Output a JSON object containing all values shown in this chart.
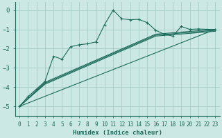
{
  "xlabel": "Humidex (Indice chaleur)",
  "bg_color": "#cce8e4",
  "grid_color": "#aacfca",
  "line_color": "#1a6b5a",
  "xlim": [
    -0.5,
    23.5
  ],
  "ylim": [
    -5.5,
    0.4
  ],
  "xticks": [
    0,
    1,
    2,
    3,
    4,
    5,
    6,
    7,
    8,
    9,
    10,
    11,
    12,
    13,
    14,
    15,
    16,
    17,
    18,
    19,
    20,
    21,
    22,
    23
  ],
  "yticks": [
    0,
    -1,
    -2,
    -3,
    -4,
    -5
  ],
  "series1_x": [
    0,
    1,
    2,
    3,
    4,
    5,
    6,
    7,
    8,
    9,
    10,
    11,
    12,
    13,
    14,
    15,
    16,
    17,
    18,
    19,
    20,
    21,
    22,
    23
  ],
  "series1_y": [
    -5.0,
    -4.5,
    -4.1,
    -3.7,
    -2.4,
    -2.55,
    -1.9,
    -1.8,
    -1.75,
    -1.65,
    -0.75,
    0.0,
    -0.45,
    -0.5,
    -0.48,
    -0.65,
    -1.05,
    -1.25,
    -1.35,
    -0.85,
    -1.0,
    -0.98,
    -1.0,
    -1.0
  ],
  "series2_x": [
    0,
    23
  ],
  "series2_y": [
    -5.0,
    -1.0
  ],
  "series3_x": [
    0,
    3,
    16,
    23
  ],
  "series3_y": [
    -5.0,
    -3.8,
    -1.3,
    -1.05
  ],
  "series4_x": [
    0,
    3,
    16,
    23
  ],
  "series4_y": [
    -5.0,
    -3.85,
    -1.35,
    -1.1
  ],
  "series5_x": [
    0,
    3,
    16,
    23
  ],
  "series5_y": [
    -5.0,
    -3.75,
    -1.25,
    -1.0
  ]
}
